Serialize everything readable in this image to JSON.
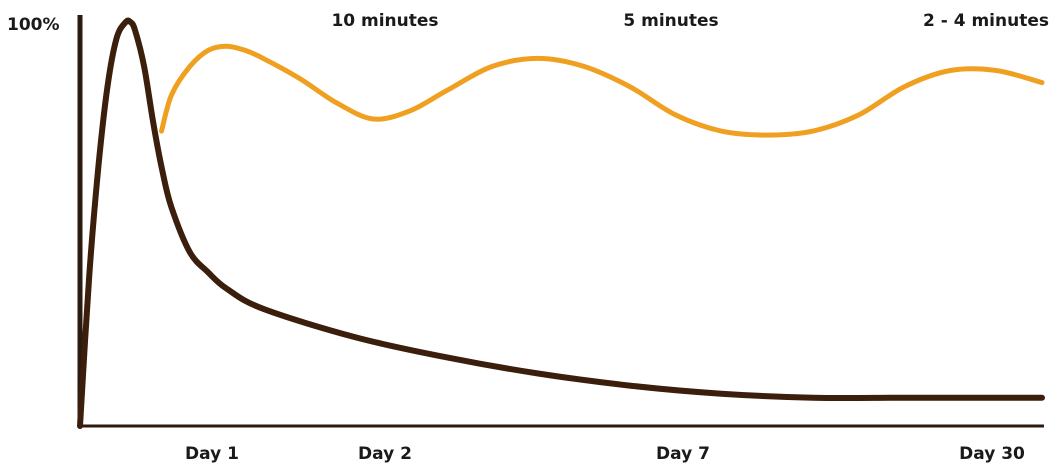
{
  "chart_data": {
    "type": "line",
    "title": "",
    "xlabel": "",
    "ylabel": "",
    "y_axis_label": "100%",
    "ylim": [
      0,
      100
    ],
    "grid": false,
    "legend": "none",
    "categories": [
      "Day 1",
      "Day 2",
      "Day 7",
      "Day 30"
    ],
    "annotations": [
      "10 minutes",
      "5 minutes",
      "2 - 4 minutes"
    ],
    "colors": {
      "axis": "#2b1a0f",
      "forgetting": "#3b1f0c",
      "review": "#f0a020"
    },
    "series": [
      {
        "key": "forgetting",
        "x": [
          0,
          0.1,
          0.2,
          0.3,
          0.4,
          0.5,
          0.55,
          0.6,
          0.7,
          0.8,
          0.9,
          1.0,
          1.2,
          1.4,
          1.6,
          2.0,
          3.0,
          4.0,
          5.0,
          6.0,
          7.0,
          8.0,
          9.0,
          10.0,
          10.5
        ],
        "y": [
          0,
          37,
          64,
          84,
          96,
          100,
          100,
          98,
          89,
          75,
          63,
          54,
          43,
          38,
          34,
          29,
          22,
          17,
          13,
          10,
          8,
          7,
          7,
          7,
          7
        ]
      },
      {
        "key": "review",
        "x": [
          0.89,
          1.0,
          1.2,
          1.4,
          1.6,
          1.8,
          2.0,
          2.4,
          2.8,
          3.2,
          3.6,
          4.0,
          4.5,
          5.0,
          5.5,
          6.0,
          6.5,
          7.0,
          7.5,
          8.0,
          8.5,
          9.0,
          9.5,
          10.0,
          10.5
        ],
        "y": [
          73,
          82,
          89,
          93,
          94,
          93,
          91,
          86,
          80,
          76,
          78,
          83,
          89,
          91,
          89,
          84,
          77,
          73,
          72,
          73,
          77,
          84,
          88,
          88,
          85
        ]
      }
    ]
  }
}
